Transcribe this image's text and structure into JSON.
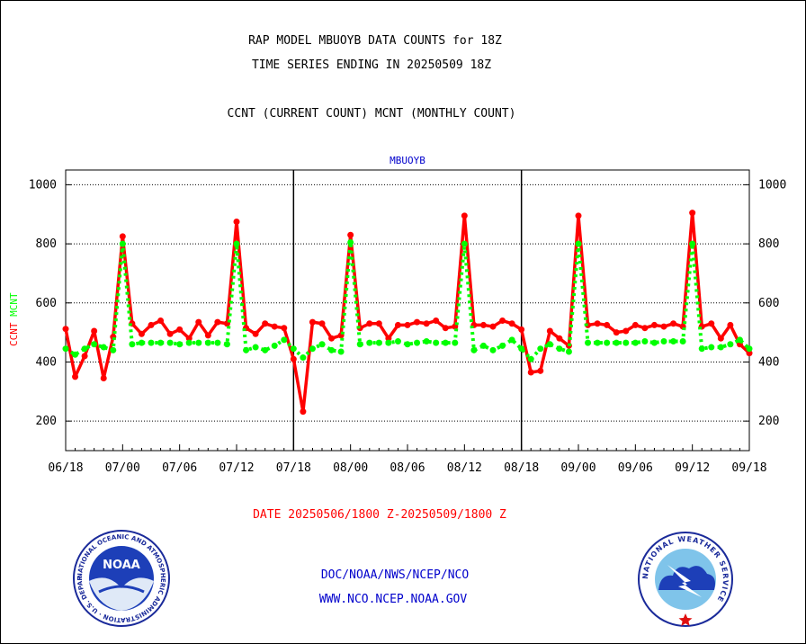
{
  "header": {
    "line1": "RAP MODEL MBUOYB DATA COUNTS for 18Z",
    "line2": "TIME SERIES ENDING IN 20250509 18Z",
    "line3": "CCNT (CURRENT COUNT) MCNT (MONTHLY COUNT)"
  },
  "footer": {
    "date_range": "DATE 20250506/1800 Z-20250509/1800 Z",
    "org_line": "DOC/NOAA/NWS/NCEP/NCO",
    "url_line": "WWW.NCO.NCEP.NOAA.GOV"
  },
  "logos": {
    "noaa": {
      "center_text": "NOAA",
      "ring_text": "NATIONAL OCEANIC AND ATMOSPHERIC ADMINISTRATION · U.S. DEPARTMENT OF COMMERCE"
    },
    "nws": {
      "ring_text": "NATIONAL WEATHER SERVICE"
    }
  },
  "colors": {
    "ccnt": "#ff0000",
    "mcnt": "#00ff00",
    "title_blue": "#0000cc",
    "date_red": "#ff0000"
  },
  "chart_data": {
    "type": "line",
    "title": "MBUOYB",
    "ylabel_parts": [
      {
        "text": "CCNT",
        "color": "#ff0000"
      },
      {
        "text": "MCNT",
        "color": "#00ff00"
      }
    ],
    "x_tick_labels": [
      "06/18",
      "07/00",
      "07/06",
      "07/12",
      "07/18",
      "08/00",
      "08/06",
      "08/12",
      "08/18",
      "09/00",
      "09/06",
      "09/12",
      "09/18"
    ],
    "x_range_hours": [
      0,
      72
    ],
    "ylim": [
      100,
      1050
    ],
    "y_ticks": [
      200,
      400,
      600,
      800,
      1000
    ],
    "grid": true,
    "day_separators_at_hours": [
      24,
      48
    ],
    "series": [
      {
        "name": "CCNT",
        "color": "#ff0000",
        "style": "solid",
        "values": [
          512,
          350,
          420,
          505,
          345,
          485,
          825,
          530,
          495,
          525,
          540,
          495,
          510,
          480,
          535,
          490,
          535,
          530,
          875,
          515,
          495,
          530,
          520,
          515,
          410,
          232,
          535,
          530,
          480,
          490,
          830,
          515,
          530,
          530,
          480,
          525,
          525,
          535,
          530,
          540,
          515,
          520,
          895,
          525,
          525,
          520,
          540,
          530,
          510,
          365,
          370,
          505,
          480,
          455,
          895,
          525,
          530,
          525,
          500,
          505,
          525,
          515,
          525,
          520,
          530,
          520,
          905,
          520,
          530,
          480,
          525,
          460,
          430
        ]
      },
      {
        "name": "MCNT",
        "color": "#00ff00",
        "style": "dotted",
        "values": [
          445,
          425,
          445,
          460,
          450,
          440,
          800,
          460,
          465,
          465,
          465,
          465,
          460,
          465,
          465,
          465,
          465,
          460,
          800,
          440,
          450,
          440,
          455,
          475,
          445,
          415,
          445,
          460,
          440,
          435,
          805,
          460,
          465,
          465,
          465,
          470,
          460,
          465,
          470,
          465,
          465,
          465,
          800,
          440,
          455,
          440,
          455,
          475,
          445,
          410,
          445,
          460,
          445,
          435,
          800,
          465,
          465,
          465,
          465,
          465,
          465,
          470,
          465,
          470,
          470,
          470,
          800,
          445,
          450,
          450,
          460,
          475,
          445
        ]
      }
    ]
  }
}
